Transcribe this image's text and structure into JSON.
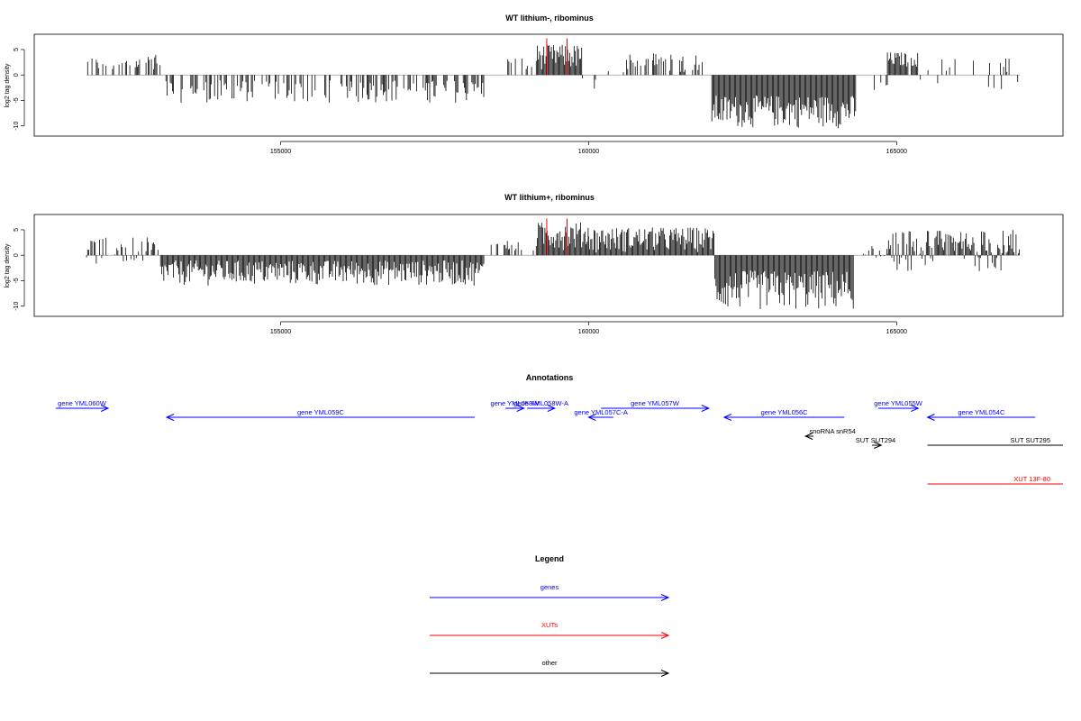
{
  "colors": {
    "genes": "#0000ff",
    "xuts": "#ff0000",
    "other": "#000000",
    "bars": "#000000",
    "highlight": "#ff0000"
  },
  "chart_data": [
    {
      "type": "bar",
      "title": "WT lithium-, ribominus",
      "ylabel": "log2 tag density",
      "xlim": [
        151000,
        167700
      ],
      "ylim": [
        -12,
        8
      ],
      "yticks": [
        5,
        0,
        -5,
        -10
      ],
      "xticks": [
        155000,
        160000,
        165000
      ],
      "grid": false,
      "segments": [
        {
          "start": 151850,
          "end": 152850,
          "min": 0.5,
          "max": 3.5,
          "density": 0.35
        },
        {
          "start": 152850,
          "end": 153050,
          "min": 1.0,
          "max": 4.5,
          "density": 0.7
        },
        {
          "start": 153050,
          "end": 158300,
          "min": -5.5,
          "max": -1.0,
          "density": 0.45
        },
        {
          "start": 158600,
          "end": 159150,
          "min": 0.5,
          "max": 3.5,
          "density": 0.25
        },
        {
          "start": 159150,
          "end": 159900,
          "min": 1.0,
          "max": 6.0,
          "density": 1.0
        },
        {
          "start": 159900,
          "end": 160300,
          "min": -3.0,
          "max": -0.5,
          "density": 0.2
        },
        {
          "start": 160300,
          "end": 161950,
          "min": 0.5,
          "max": 4.5,
          "density": 0.35
        },
        {
          "start": 162000,
          "end": 164350,
          "min": -10.5,
          "max": -4.0,
          "density": 1.0
        },
        {
          "start": 164550,
          "end": 164850,
          "min": -3.5,
          "max": -0.5,
          "density": 0.2
        },
        {
          "start": 164850,
          "end": 165350,
          "min": 1.5,
          "max": 4.5,
          "density": 0.9
        },
        {
          "start": 165350,
          "end": 167000,
          "min": -3.0,
          "max": 3.5,
          "density": 0.15
        }
      ],
      "highlight_bars": [
        {
          "x": 159320,
          "y": 7.2
        },
        {
          "x": 159650,
          "y": 7.2
        }
      ]
    },
    {
      "type": "bar",
      "title": "WT lithium+, ribominus",
      "ylabel": "log2 tag density",
      "xlim": [
        151000,
        167700
      ],
      "ylim": [
        -12,
        8
      ],
      "yticks": [
        5,
        0,
        -5,
        -10
      ],
      "xticks": [
        155000,
        160000,
        165000
      ],
      "grid": false,
      "segments": [
        {
          "start": 151850,
          "end": 153050,
          "min": -2.0,
          "max": 3.5,
          "density": 0.55
        },
        {
          "start": 153050,
          "end": 158300,
          "min": -6.0,
          "max": -1.0,
          "density": 1.0
        },
        {
          "start": 158400,
          "end": 159150,
          "min": 0.5,
          "max": 3.0,
          "density": 0.25
        },
        {
          "start": 159150,
          "end": 160000,
          "min": 1.0,
          "max": 6.5,
          "density": 1.0
        },
        {
          "start": 160000,
          "end": 162050,
          "min": 0.5,
          "max": 5.5,
          "density": 1.0
        },
        {
          "start": 162050,
          "end": 164300,
          "min": -11.0,
          "max": -3.0,
          "density": 1.0
        },
        {
          "start": 164300,
          "end": 164850,
          "min": -2.0,
          "max": 2.0,
          "density": 0.4
        },
        {
          "start": 164850,
          "end": 167000,
          "min": -3.5,
          "max": 5.0,
          "density": 0.9
        }
      ],
      "highlight_bars": [
        {
          "x": 159320,
          "y": 7.2
        },
        {
          "x": 159650,
          "y": 7.2
        }
      ]
    }
  ],
  "annotations": {
    "title": "Annotations",
    "features": [
      {
        "label": "gene YML060W",
        "start": 151350,
        "end": 152200,
        "strand": "+",
        "row": 0,
        "category": "genes"
      },
      {
        "label": "gene YML059C",
        "start": 153150,
        "end": 158150,
        "strand": "-",
        "row": 1,
        "category": "genes"
      },
      {
        "label": "gene YML058W",
        "start": 158650,
        "end": 158950,
        "strand": "+",
        "row": 0,
        "category": "genes"
      },
      {
        "label": "gene YML058W-A",
        "start": 159000,
        "end": 159450,
        "strand": "+",
        "row": 0,
        "category": "genes"
      },
      {
        "label": "gene YML057C-A",
        "start": 160000,
        "end": 160400,
        "strand": "-",
        "row": 1,
        "category": "genes"
      },
      {
        "label": "gene YML057W",
        "start": 160200,
        "end": 161950,
        "strand": "+",
        "row": 0,
        "category": "genes"
      },
      {
        "label": "gene YML056C",
        "start": 162200,
        "end": 164150,
        "strand": "-",
        "row": 1,
        "category": "genes"
      },
      {
        "label": "snoRNA snR54",
        "start": 163520,
        "end": 163650,
        "strand": "-",
        "row": 2,
        "category": "other"
      },
      {
        "label": "gene YML055W",
        "start": 164700,
        "end": 165350,
        "strand": "+",
        "row": 0,
        "category": "genes"
      },
      {
        "label": "SUT SUT294",
        "start": 164600,
        "end": 164750,
        "strand": "+",
        "row": 3,
        "category": "other"
      },
      {
        "label": "gene YML054C",
        "start": 165500,
        "end": 167250,
        "strand": "-",
        "row": 1,
        "category": "genes"
      },
      {
        "label": "SUT SUT295",
        "start": 165500,
        "end": 167700,
        "strand": ".",
        "row": 3,
        "category": "other"
      },
      {
        "label": "XUT 13F-80",
        "start": 165500,
        "end": 167700,
        "strand": ".",
        "row": 6,
        "category": "xuts"
      }
    ]
  },
  "legend": {
    "title": "Legend",
    "items": [
      {
        "label": "genes",
        "category": "genes"
      },
      {
        "label": "XUTs",
        "category": "xuts"
      },
      {
        "label": "other",
        "category": "other"
      }
    ]
  }
}
